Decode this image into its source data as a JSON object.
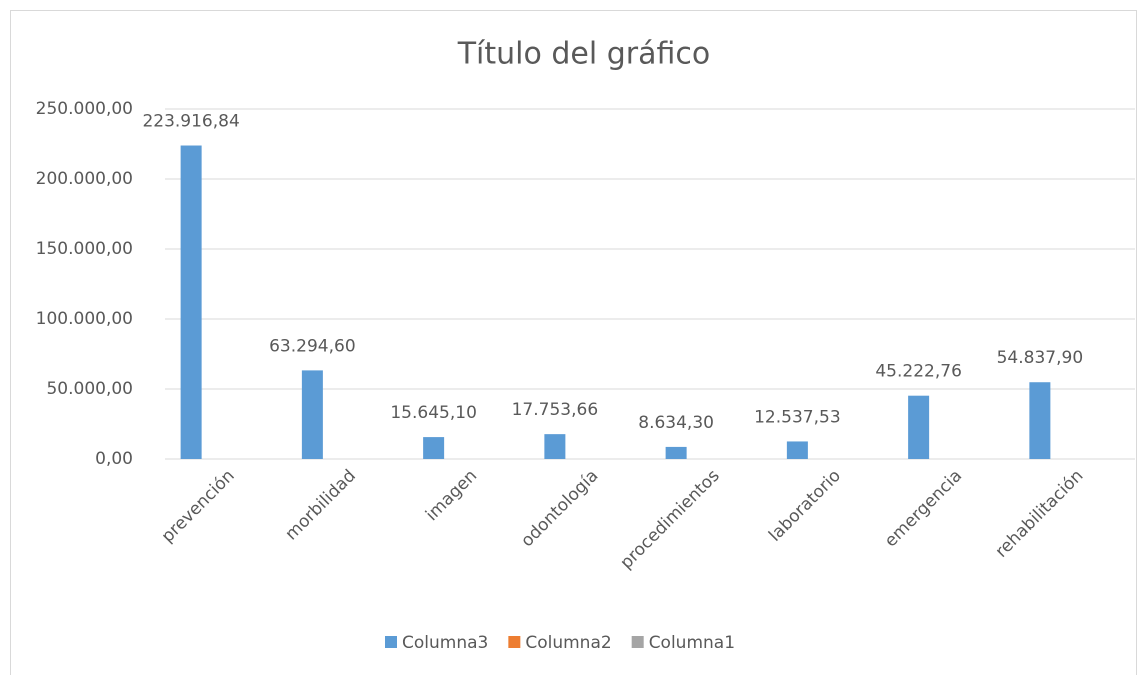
{
  "chart_data": {
    "type": "bar",
    "title": "Título del gráfico",
    "categories": [
      "prevención",
      "morbilidad",
      "imagen",
      "odontología",
      "procedimientos",
      "laboratorio",
      "emergencia",
      "rehabilitación"
    ],
    "series": [
      {
        "name": "Columna3",
        "color": "#5b9bd5",
        "values": [
          223916.84,
          63294.6,
          15645.1,
          17753.66,
          8634.3,
          12537.53,
          45222.76,
          54837.9
        ],
        "value_labels": [
          "223.916,84",
          "63.294,60",
          "15.645,10",
          "17.753,66",
          "8.634,30",
          "12.537,53",
          "45.222,76",
          "54.837,90"
        ]
      },
      {
        "name": "Columna2",
        "color": "#ed7d31",
        "values": [
          null,
          null,
          null,
          null,
          null,
          null,
          null,
          null
        ]
      },
      {
        "name": "Columna1",
        "color": "#a5a5a5",
        "values": [
          null,
          null,
          null,
          null,
          null,
          null,
          null,
          null
        ]
      }
    ],
    "ylim": [
      0,
      250000
    ],
    "yticks": [
      {
        "value": 0,
        "label": "0,00"
      },
      {
        "value": 50000,
        "label": "50.000,00"
      },
      {
        "value": 100000,
        "label": "100.000,00"
      },
      {
        "value": 150000,
        "label": "150.000,00"
      },
      {
        "value": 200000,
        "label": "200.000,00"
      },
      {
        "value": 250000,
        "label": "250.000,00"
      }
    ],
    "grid": true,
    "legend": "bottom"
  }
}
